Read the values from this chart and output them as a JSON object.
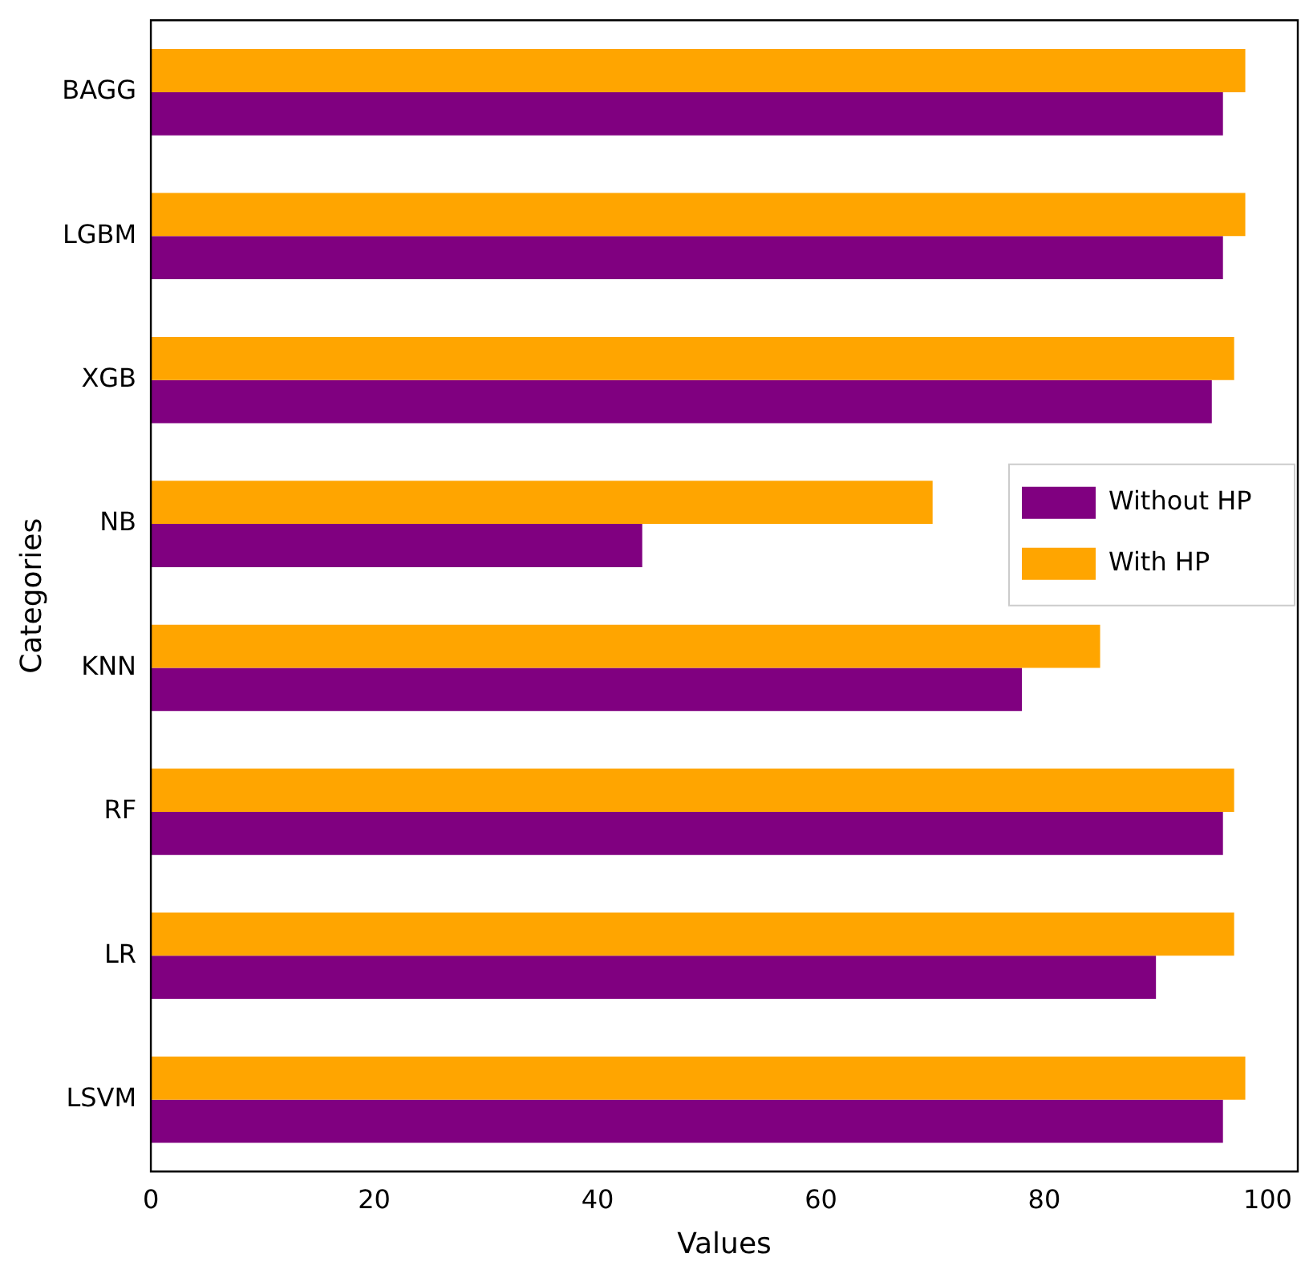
{
  "chart_data": {
    "type": "bar",
    "orientation": "horizontal",
    "xlabel": "Values",
    "ylabel": "Categories",
    "categories": [
      "BAGG",
      "LGBM",
      "XGB",
      "NB",
      "KNN",
      "RF",
      "LR",
      "LSVM"
    ],
    "series": [
      {
        "name": "Without HP",
        "color": "#800080",
        "values": [
          96,
          96,
          95,
          44,
          78,
          96,
          90,
          96
        ]
      },
      {
        "name": "With HP",
        "color": "#ffa500",
        "values": [
          98,
          98,
          97,
          70,
          85,
          97,
          97,
          98
        ]
      }
    ],
    "xlim": [
      0,
      102.7
    ],
    "xticks": [
      0,
      20,
      40,
      60,
      80,
      100
    ],
    "grid": false,
    "legend": "right"
  }
}
